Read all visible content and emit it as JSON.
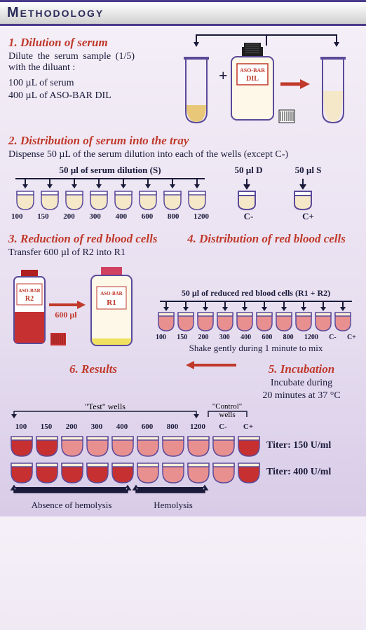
{
  "header": {
    "title": "Methodology"
  },
  "step1": {
    "title": "1. Dilution of serum",
    "line1": "Dilute the serum sample (1/5) with the diluant :",
    "line2": "100 µL of serum",
    "line3": "400 µL of ASO-BAR DIL",
    "bottle_label1": "ASO-BAR",
    "bottle_label2": "DIL",
    "colors": {
      "serum": "#e8c878",
      "tube_outline": "#5a4a9a",
      "arrow": "#c0392b",
      "bottle_fill": "#fdf8e8",
      "cap": "#202020"
    }
  },
  "step2": {
    "title": "2. Distribution of serum into the tray",
    "text": "Dispense 50 µL of the serum dilution into each of the wells (except C-)",
    "label_main": "50 µl of serum dilution (S)",
    "label_d": "50 µl D",
    "label_s": "50 µl S",
    "well_values": [
      "100",
      "150",
      "200",
      "300",
      "400",
      "600",
      "800",
      "1200"
    ],
    "cminus": "C-",
    "cplus": "C+",
    "well_fill": "#f5e8c8",
    "well_outline": "#5a4a9a"
  },
  "step3": {
    "title": "3. Reduction of red blood cells",
    "text": "Transfer 600 µl of R2 into R1",
    "r2_label1": "ASO-BAR",
    "r2_label2": "R2",
    "xfer": "600 µl",
    "r1_label1": "ASO-BAR",
    "r1_label2": "R1",
    "r2_fill": "#c73030",
    "r1_fill": "#f0e060",
    "r2_cap": "#b02020",
    "r1_cap": "#d04060"
  },
  "step4": {
    "title": "4. Distribution of red blood cells",
    "label": "50 µl of reduced red blood cells (R1 + R2)",
    "well_values": [
      "100",
      "150",
      "200",
      "300",
      "400",
      "600",
      "800",
      "1200",
      "C-",
      "C+"
    ],
    "shake": "Shake gently during 1 minute to mix",
    "well_fill": "#e89090",
    "well_top": "#fdf0d8"
  },
  "step5": {
    "title": "5. Incubation",
    "text1": "Incubate during",
    "text2": "20 minutes at 37 °C"
  },
  "step6": {
    "title": "6. Results",
    "test_label": "\"Test\" wells",
    "control_label": "\"Control\" wells",
    "well_values": [
      "100",
      "150",
      "200",
      "300",
      "400",
      "600",
      "800",
      "1200",
      "C-",
      "C+"
    ],
    "row1_colors": [
      "#c73030",
      "#c73030",
      "#e89090",
      "#e89090",
      "#e89090",
      "#e89090",
      "#e89090",
      "#e89090",
      "#e89090",
      "#c73030"
    ],
    "row1_titer": "Titer: 150 U/ml",
    "row2_colors": [
      "#c73030",
      "#c73030",
      "#c73030",
      "#c73030",
      "#c73030",
      "#e89090",
      "#e89090",
      "#e89090",
      "#e89090",
      "#c73030"
    ],
    "row2_titer": "Titer: 400 U/ml",
    "absence": "Absence of hemolysis",
    "hemolysis": "Hemolysis"
  }
}
